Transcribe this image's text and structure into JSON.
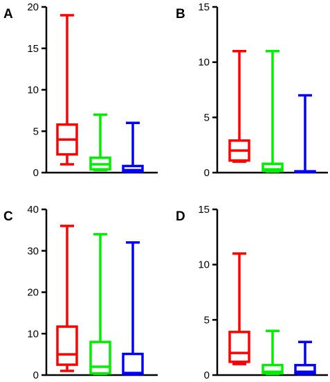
{
  "chart_data": [
    {
      "type": "boxplot",
      "panel_label": "A",
      "ylim": [
        0,
        20
      ],
      "yticks": [
        0,
        5,
        10,
        15,
        20
      ],
      "colors": [
        "#ff0000",
        "#00ee00",
        "#0000ff"
      ],
      "boxes": [
        {
          "min": 1,
          "q1": 2.2,
          "median": 4,
          "q3": 5.8,
          "max": 19
        },
        {
          "min": 0.3,
          "q1": 0.4,
          "median": 1,
          "q3": 1.8,
          "max": 7
        },
        {
          "min": 0.1,
          "q1": 0.15,
          "median": 0.3,
          "q3": 0.8,
          "max": 6
        }
      ]
    },
    {
      "type": "boxplot",
      "panel_label": "B",
      "ylim": [
        0,
        15
      ],
      "yticks": [
        0,
        5,
        10,
        15
      ],
      "colors": [
        "#ff0000",
        "#00ee00",
        "#0000ff"
      ],
      "boxes": [
        {
          "min": 1,
          "q1": 1.1,
          "median": 2,
          "q3": 2.9,
          "max": 11
        },
        {
          "min": 0.1,
          "q1": 0.15,
          "median": 0.3,
          "q3": 0.8,
          "max": 11
        },
        {
          "min": 0.05,
          "q1": 0.05,
          "median": 0.08,
          "q3": 0.12,
          "max": 7
        }
      ]
    },
    {
      "type": "boxplot",
      "panel_label": "C",
      "ylim": [
        0,
        40
      ],
      "yticks": [
        0,
        10,
        20,
        30,
        40
      ],
      "colors": [
        "#ff0000",
        "#00ee00",
        "#0000ff"
      ],
      "boxes": [
        {
          "min": 1,
          "q1": 2.5,
          "median": 5,
          "q3": 11.7,
          "max": 36
        },
        {
          "min": 0.3,
          "q1": 0.4,
          "median": 2,
          "q3": 8,
          "max": 34
        },
        {
          "min": 0.2,
          "q1": 0.3,
          "median": 0.5,
          "q3": 5.1,
          "max": 32
        }
      ]
    },
    {
      "type": "boxplot",
      "panel_label": "D",
      "ylim": [
        0,
        15
      ],
      "yticks": [
        0,
        5,
        10,
        15
      ],
      "colors": [
        "#ff0000",
        "#00ee00",
        "#0000ff"
      ],
      "boxes": [
        {
          "min": 1,
          "q1": 1.2,
          "median": 2,
          "q3": 3.9,
          "max": 11
        },
        {
          "min": 0.1,
          "q1": 0.15,
          "median": 0.3,
          "q3": 0.9,
          "max": 4
        },
        {
          "min": 0.1,
          "q1": 0.15,
          "median": 0.3,
          "q3": 0.9,
          "max": 3
        }
      ]
    }
  ]
}
